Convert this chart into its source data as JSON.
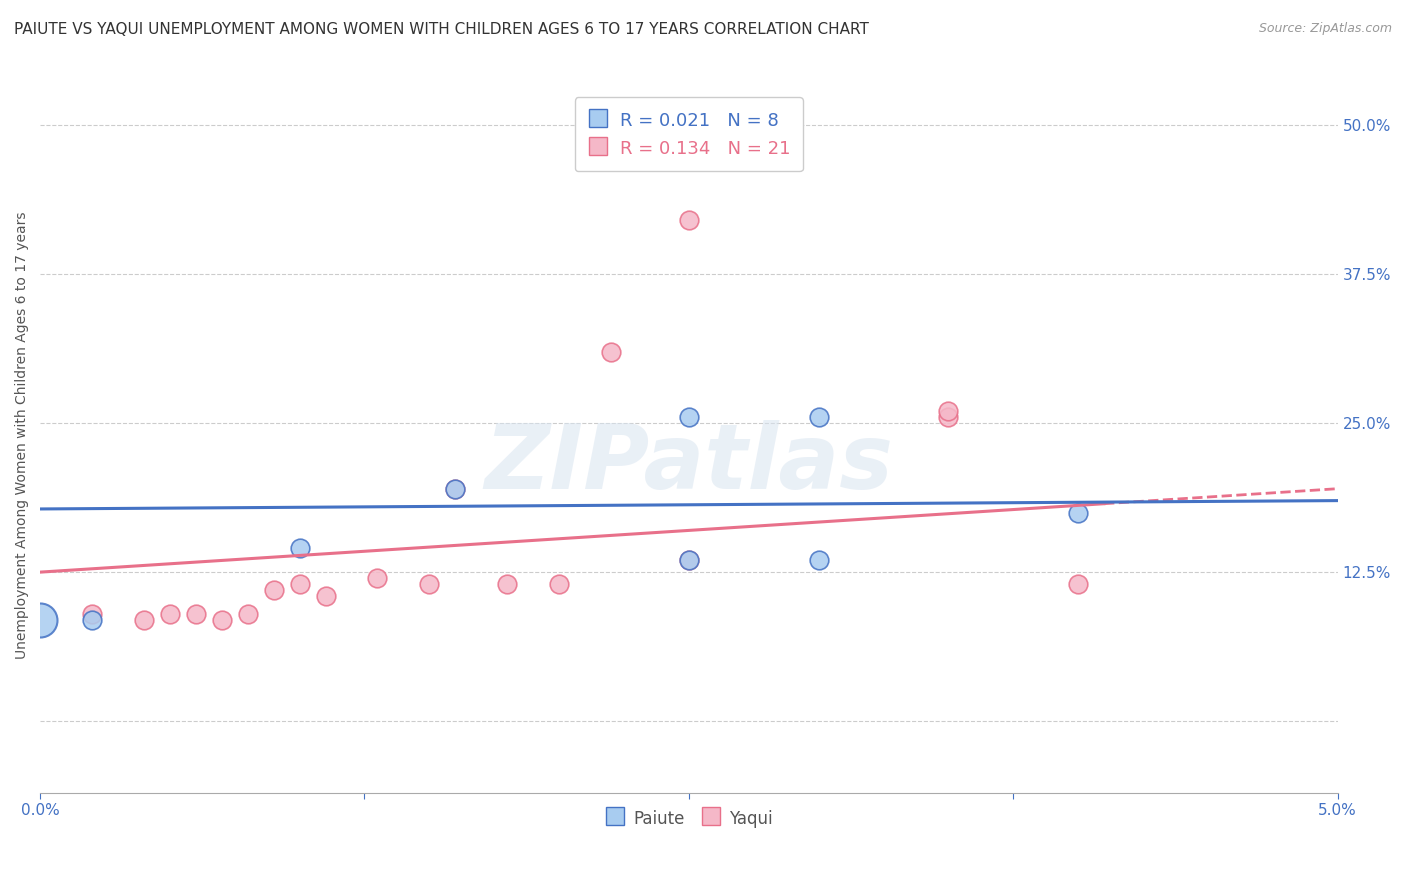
{
  "title": "PAIUTE VS YAQUI UNEMPLOYMENT AMONG WOMEN WITH CHILDREN AGES 6 TO 17 YEARS CORRELATION CHART",
  "source": "Source: ZipAtlas.com",
  "xlabel": "",
  "ylabel": "Unemployment Among Women with Children Ages 6 to 17 years",
  "xlim": [
    0.0,
    0.05
  ],
  "ylim": [
    -0.06,
    0.54
  ],
  "xticks": [
    0.0,
    0.0125,
    0.025,
    0.0375,
    0.05
  ],
  "xtick_labels": [
    "0.0%",
    "",
    "",
    "",
    "5.0%"
  ],
  "ytick_labels_right": [
    "50.0%",
    "37.5%",
    "25.0%",
    "12.5%"
  ],
  "ytick_vals_right": [
    0.5,
    0.375,
    0.25,
    0.125
  ],
  "paiute_color": "#A8CCF0",
  "yaqui_color": "#F5B8C8",
  "paiute_line_color": "#4472C4",
  "yaqui_line_color": "#E8708A",
  "background_color": "#FFFFFF",
  "paiute_R": 0.021,
  "paiute_N": 8,
  "yaqui_R": 0.134,
  "yaqui_N": 21,
  "paiute_points": [
    [
      0.002,
      0.085
    ],
    [
      0.01,
      0.145
    ],
    [
      0.016,
      0.195
    ],
    [
      0.025,
      0.255
    ],
    [
      0.025,
      0.135
    ],
    [
      0.03,
      0.135
    ],
    [
      0.03,
      0.255
    ],
    [
      0.04,
      0.175
    ]
  ],
  "yaqui_points": [
    [
      0.002,
      0.09
    ],
    [
      0.004,
      0.085
    ],
    [
      0.005,
      0.09
    ],
    [
      0.006,
      0.09
    ],
    [
      0.007,
      0.085
    ],
    [
      0.008,
      0.09
    ],
    [
      0.009,
      0.11
    ],
    [
      0.01,
      0.115
    ],
    [
      0.011,
      0.105
    ],
    [
      0.013,
      0.12
    ],
    [
      0.015,
      0.115
    ],
    [
      0.016,
      0.195
    ],
    [
      0.018,
      0.115
    ],
    [
      0.02,
      0.115
    ],
    [
      0.022,
      0.31
    ],
    [
      0.025,
      0.135
    ],
    [
      0.025,
      0.42
    ],
    [
      0.025,
      0.505
    ],
    [
      0.035,
      0.255
    ],
    [
      0.035,
      0.26
    ],
    [
      0.04,
      0.115
    ]
  ],
  "paiute_large_point": [
    0.0,
    0.085
  ],
  "paiute_large_size": 600,
  "watermark": "ZIPatlas",
  "title_fontsize": 11,
  "axis_label_fontsize": 10,
  "tick_fontsize": 11,
  "legend_fontsize": 13
}
